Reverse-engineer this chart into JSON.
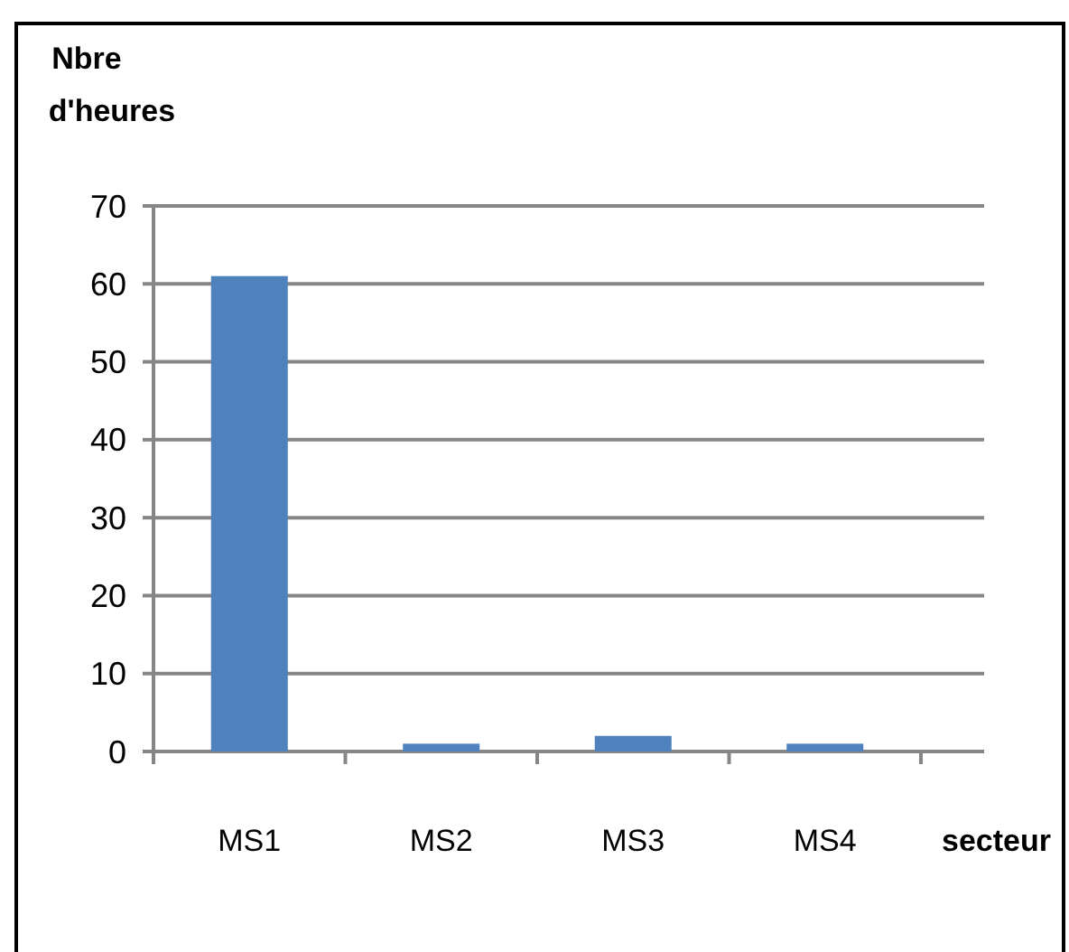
{
  "chart_data": {
    "type": "bar",
    "xlabel": "secteur",
    "ylabel": "Nbre d'heures",
    "categories": [
      "MS1",
      "MS2",
      "MS3",
      "MS4"
    ],
    "series": [
      {
        "color": "#4f81bd",
        "values": [
          61,
          1,
          2,
          1
        ]
      }
    ],
    "ylim": [
      0,
      70
    ],
    "yticks": [
      0,
      10,
      20,
      30,
      40,
      50,
      60,
      70
    ],
    "grid": "y"
  }
}
